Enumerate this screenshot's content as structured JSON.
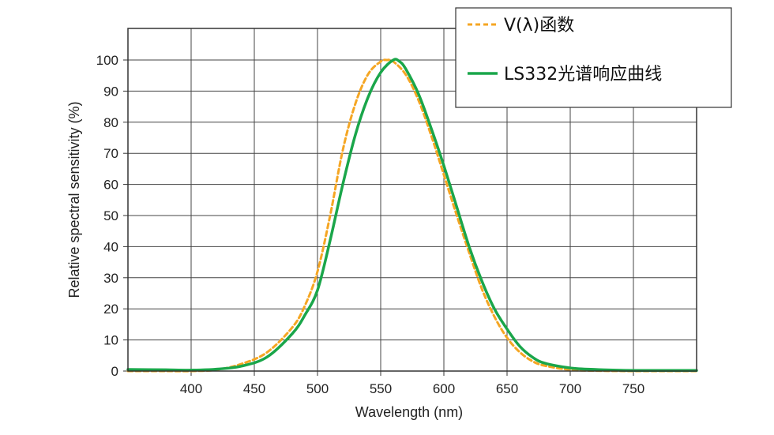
{
  "chart_data": {
    "type": "line",
    "xlabel": "Wavelength (nm)",
    "ylabel": "Relative spectral sensitivity (%)",
    "xlim": [
      350,
      800
    ],
    "ylim": [
      0,
      110
    ],
    "x_ticks": [
      400,
      450,
      500,
      550,
      600,
      650,
      700,
      750
    ],
    "y_ticks": [
      0,
      10,
      20,
      30,
      40,
      50,
      60,
      70,
      80,
      90,
      100
    ],
    "grid": true,
    "legend_position": "top-right",
    "series": [
      {
        "name": "V(λ)函数",
        "color": "#f5a623",
        "style": "dashed",
        "x": [
          350,
          380,
          400,
          420,
          440,
          460,
          480,
          490,
          500,
          510,
          520,
          530,
          540,
          550,
          555,
          560,
          570,
          580,
          590,
          600,
          610,
          620,
          630,
          640,
          650,
          660,
          670,
          680,
          700,
          720,
          750,
          800
        ],
        "y": [
          0,
          0,
          0,
          0.4,
          2.3,
          6,
          14,
          21,
          32,
          50,
          71,
          86,
          95.4,
          99.5,
          100,
          99.5,
          95.2,
          87,
          75.7,
          63.1,
          50.3,
          38.1,
          26.5,
          17.5,
          10.7,
          6.1,
          3.2,
          1.7,
          0.4,
          0.1,
          0,
          0
        ]
      },
      {
        "name": "LS332光谱响应曲线",
        "color": "#1aa64a",
        "style": "solid",
        "x": [
          350,
          380,
          400,
          420,
          440,
          460,
          480,
          490,
          500,
          510,
          520,
          530,
          540,
          550,
          560,
          565,
          570,
          580,
          590,
          600,
          610,
          620,
          630,
          640,
          650,
          660,
          670,
          680,
          700,
          720,
          750,
          800
        ],
        "y": [
          0.5,
          0.4,
          0.3,
          0.6,
          1.6,
          4.5,
          12,
          18,
          26,
          42,
          60,
          76,
          88,
          96,
          100,
          99.5,
          97,
          89,
          78,
          66,
          53,
          40,
          29,
          20,
          13.5,
          8,
          4.5,
          2.5,
          1,
          0.5,
          0.2,
          0.2
        ]
      }
    ]
  }
}
